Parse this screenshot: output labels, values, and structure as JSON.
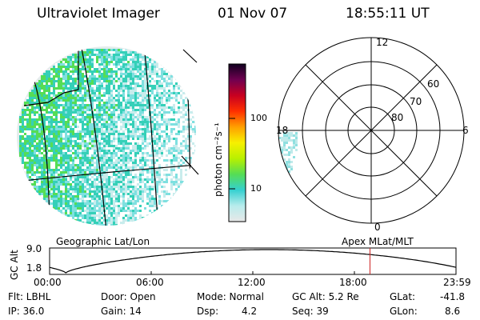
{
  "header": {
    "instrument": "Ultraviolet Imager",
    "date": "01 Nov 07",
    "time": "18:55:11 UT"
  },
  "colorbar": {
    "unit_label": "photon cm⁻²s⁻¹",
    "ticks": [
      "100",
      "10"
    ]
  },
  "polar_plot": {
    "mlt_labels": [
      "12",
      "18",
      "6",
      "0"
    ],
    "lat_labels": [
      "60",
      "70",
      "80"
    ]
  },
  "map_labels": {
    "left": "Geographic Lat/Lon",
    "right": "Apex MLat/MLT"
  },
  "altitude_plot": {
    "ylabel": "GC Alt",
    "yticks": [
      "9.0",
      "1.8"
    ],
    "xticks": [
      "00:00",
      "06:00",
      "12:00",
      "18:00",
      "23:59"
    ],
    "current_time_marker_hours": 18.92
  },
  "info": {
    "flt": "Flt: LBHL",
    "ip": "IP: 36.0",
    "door": "Door: Open",
    "gain": "Gain: 14",
    "mode": "Mode: Normal",
    "dsp_label": "Dsp:",
    "dsp_value": "4.2",
    "gcalt": "GC Alt: 5.2 Re",
    "seq": "Seq: 39",
    "glat_label": "GLat:",
    "glat_value": "-41.8",
    "glon_label": "GLon:",
    "glon_value": "8.6"
  },
  "colors": {
    "colorbar_stops": [
      "#e8e8e8",
      "#b8ecec",
      "#35d0d0",
      "#55dd55",
      "#b8f000",
      "#f7f000",
      "#ffa000",
      "#ff3000",
      "#c80020",
      "#700050",
      "#100020"
    ],
    "marker": "#cc2222"
  }
}
